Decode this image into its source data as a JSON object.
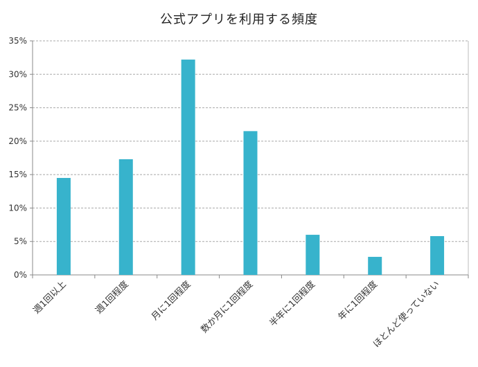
{
  "chart_data": {
    "type": "bar",
    "title": "公式アプリを利用する頻度",
    "xlabel": "",
    "ylabel": "",
    "categories": [
      "週1回以上",
      "週1回程度",
      "月に1回程度",
      "数か月に1回程度",
      "半年に1回程度",
      "年に1回程度",
      "ほとんど使っていない"
    ],
    "values": [
      14.5,
      17.3,
      32.2,
      21.5,
      6.0,
      2.7,
      5.8
    ],
    "ylim": [
      0,
      35
    ],
    "yticks": [
      0,
      5,
      10,
      15,
      20,
      25,
      30,
      35
    ],
    "ytick_labels": [
      "0%",
      "5%",
      "10%",
      "15%",
      "20%",
      "25%",
      "30%",
      "35%"
    ],
    "grid": true,
    "legend": "none",
    "bar_color": "#37b3cc"
  }
}
